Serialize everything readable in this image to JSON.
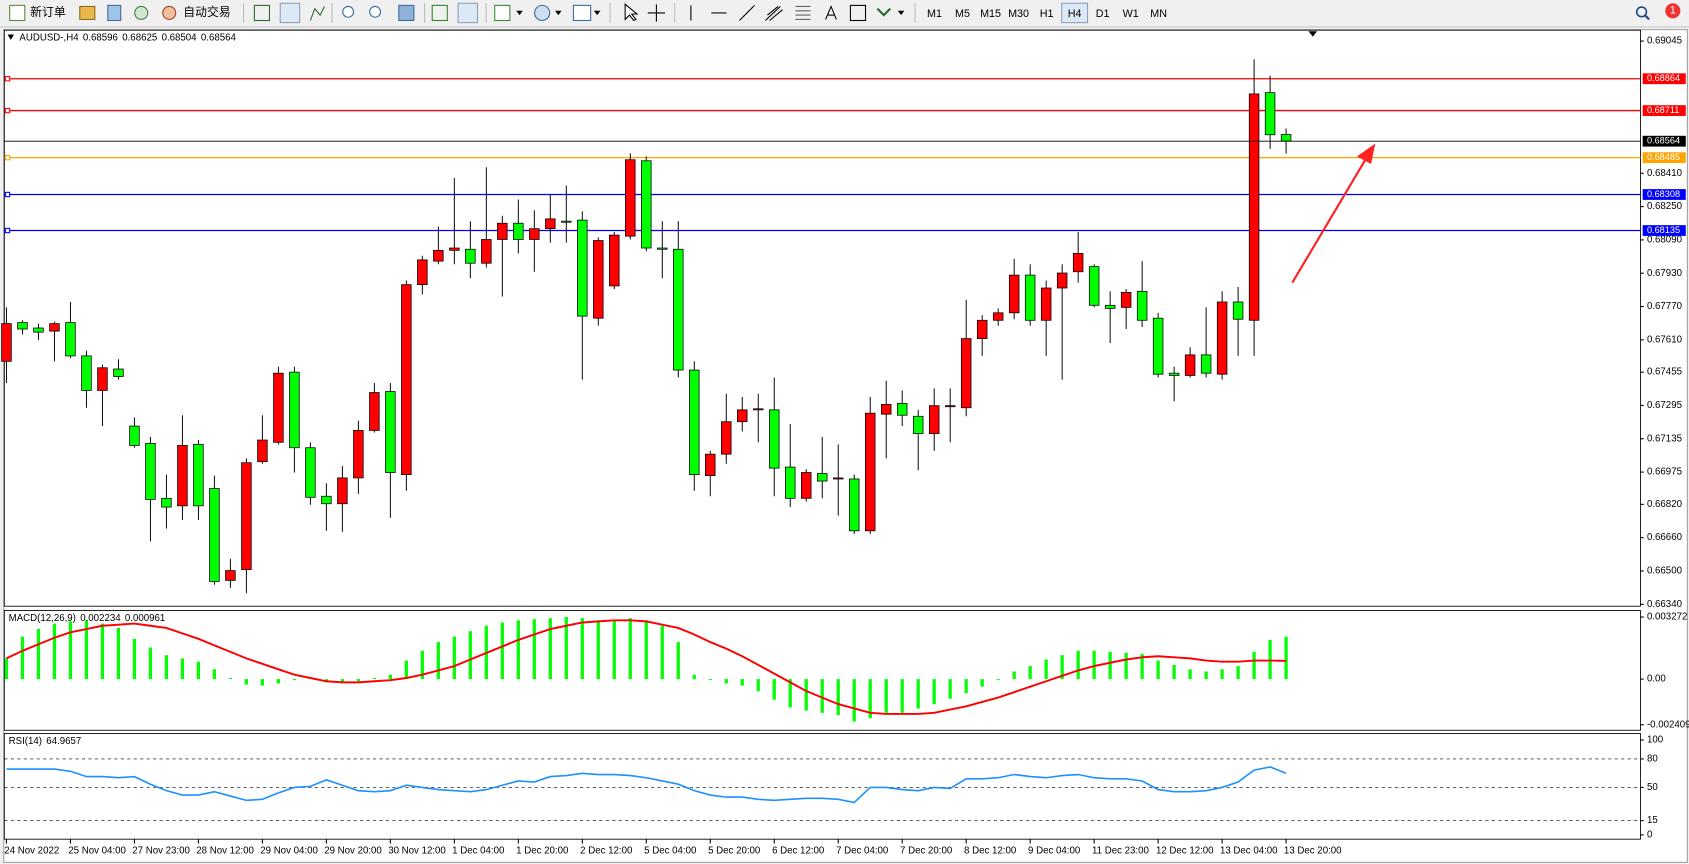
{
  "toolbar": {
    "new_order": "新订单",
    "auto_trading": "自动交易",
    "timeframes": [
      "M1",
      "M5",
      "M15",
      "M30",
      "H1",
      "H4",
      "D1",
      "W1",
      "MN"
    ],
    "active_timeframe": "H4",
    "notifications": "1"
  },
  "chart_data": [
    {
      "type": "candlestick",
      "title": "AUDUSD-,H4",
      "up_color": "#ff0000",
      "down_color": "#00ff00",
      "categories": [
        "24 Nov 2022",
        null,
        null,
        null,
        "25 Nov 04:00",
        null,
        null,
        null,
        "27 Nov 23:00",
        null,
        null,
        null,
        "28 Nov 12:00",
        null,
        null,
        null,
        "29 Nov 04:00",
        null,
        null,
        null,
        "29 Nov 20:00",
        null,
        null,
        null,
        "30 Nov 12:00",
        null,
        null,
        null,
        "1 Dec 04:00",
        null,
        null,
        null,
        "1 Dec 20:00",
        null,
        null,
        null,
        "2 Dec 12:00",
        null,
        null,
        null,
        "5 Dec 04:00",
        null,
        null,
        null,
        "5 Dec 20:00",
        null,
        null,
        null,
        "6 Dec 12:00",
        null,
        null,
        null,
        "7 Dec 04:00",
        null,
        null,
        null,
        "7 Dec 20:00",
        null,
        null,
        null,
        "8 Dec 12:00",
        null,
        null,
        null,
        "9 Dec 04:00",
        null,
        null,
        null,
        "11 Dec 23:00",
        null,
        null,
        null,
        "12 Dec 12:00",
        null,
        null,
        null,
        "13 Dec 04:00",
        null,
        null,
        null,
        "13 Dec 20:00"
      ],
      "open": [
        0.67507,
        0.67693,
        0.67667,
        0.67652,
        0.67693,
        0.67533,
        0.67367,
        0.6747,
        0.67196,
        0.67113,
        0.66849,
        0.66813,
        0.67108,
        0.66896,
        0.66455,
        0.66507,
        0.67025,
        0.67118,
        0.67455,
        0.67092,
        0.66859,
        0.66823,
        0.66947,
        0.67175,
        0.67362,
        0.66963,
        0.67875,
        0.67988,
        0.6804,
        0.68045,
        0.67978,
        0.68092,
        0.6817,
        0.68092,
        0.68144,
        0.6818,
        0.68185,
        0.67714,
        0.67869,
        0.68108,
        0.6847,
        0.68051,
        0.68045,
        0.67465,
        0.66958,
        0.67061,
        0.67217,
        0.67274,
        0.67274,
        0.66999,
        0.66849,
        0.66968,
        0.66942,
        0.66942,
        0.66693,
        0.67253,
        0.67305,
        0.67243,
        0.6716,
        0.67289,
        0.67284,
        0.67616,
        0.67704,
        0.6774,
        0.67921,
        0.67704,
        0.67859,
        0.67937,
        0.67962,
        0.67776,
        0.67766,
        0.67843,
        0.67714,
        0.6745,
        0.67439,
        0.67538,
        0.67445,
        0.67792,
        0.67704,
        0.68797,
        0.68596
      ],
      "high": [
        0.67766,
        0.67704,
        0.67688,
        0.67698,
        0.67792,
        0.67558,
        0.67491,
        0.67517,
        0.67237,
        0.67144,
        0.66963,
        0.67248,
        0.67129,
        0.66958,
        0.66559,
        0.67041,
        0.67248,
        0.67481,
        0.67481,
        0.67118,
        0.66921,
        0.67004,
        0.67222,
        0.67403,
        0.67403,
        0.67895,
        0.68014,
        0.68154,
        0.68387,
        0.6818,
        0.68439,
        0.68206,
        0.68284,
        0.68232,
        0.6831,
        0.68351,
        0.68227,
        0.68102,
        0.68128,
        0.68506,
        0.68491,
        0.6818,
        0.6818,
        0.67507,
        0.67077,
        0.67351,
        0.67336,
        0.67351,
        0.67429,
        0.67206,
        0.66989,
        0.67144,
        0.67108,
        0.66963,
        0.67336,
        0.67414,
        0.67367,
        0.67274,
        0.67377,
        0.67377,
        0.67802,
        0.67729,
        0.67761,
        0.67999,
        0.67973,
        0.67895,
        0.67973,
        0.68128,
        0.67973,
        0.67843,
        0.67854,
        0.67988,
        0.6774,
        0.67481,
        0.67574,
        0.67766,
        0.67843,
        0.67864,
        0.68957,
        0.68879,
        0.68625
      ],
      "low": [
        0.67403,
        0.67636,
        0.6761,
        0.67507,
        0.67522,
        0.67284,
        0.67196,
        0.67419,
        0.67092,
        0.66642,
        0.66704,
        0.66745,
        0.66745,
        0.66434,
        0.66419,
        0.66393,
        0.67015,
        0.67108,
        0.66973,
        0.66818,
        0.66693,
        0.66688,
        0.6687,
        0.67165,
        0.66756,
        0.66885,
        0.67828,
        0.67973,
        0.67973,
        0.67906,
        0.67957,
        0.67818,
        0.68025,
        0.67937,
        0.68077,
        0.68077,
        0.67419,
        0.67678,
        0.67854,
        0.68092,
        0.68035,
        0.67906,
        0.67429,
        0.66885,
        0.66859,
        0.67015,
        0.6717,
        0.67118,
        0.66859,
        0.66807,
        0.66833,
        0.66849,
        0.66766,
        0.66678,
        0.66678,
        0.67041,
        0.67196,
        0.66984,
        0.67077,
        0.67118,
        0.67243,
        0.67533,
        0.67678,
        0.67709,
        0.67678,
        0.67533,
        0.67419,
        0.67885,
        0.67766,
        0.67595,
        0.67662,
        0.67672,
        0.67429,
        0.67315,
        0.67429,
        0.67429,
        0.67419,
        0.67533,
        0.67533,
        0.68527,
        0.68504
      ],
      "close": [
        0.67688,
        0.67662,
        0.67647,
        0.67688,
        0.67533,
        0.67367,
        0.67476,
        0.67434,
        0.67103,
        0.66844,
        0.66807,
        0.67103,
        0.66813,
        0.6645,
        0.66502,
        0.6702,
        0.67129,
        0.6745,
        0.67092,
        0.66854,
        0.66823,
        0.66947,
        0.67175,
        0.67357,
        0.66973,
        0.67875,
        0.67994,
        0.6804,
        0.68051,
        0.67978,
        0.68092,
        0.6817,
        0.68092,
        0.68144,
        0.68191,
        0.68175,
        0.67724,
        0.68087,
        0.68113,
        0.68475,
        0.68051,
        0.68045,
        0.67465,
        0.66963,
        0.67061,
        0.67217,
        0.67274,
        0.67279,
        0.66994,
        0.66849,
        0.66973,
        0.66932,
        0.66947,
        0.66693,
        0.67258,
        0.673,
        0.67248,
        0.6716,
        0.67294,
        0.67294,
        0.67616,
        0.67704,
        0.6774,
        0.67921,
        0.67704,
        0.67859,
        0.67931,
        0.68025,
        0.67776,
        0.67761,
        0.67838,
        0.67704,
        0.67445,
        0.67439,
        0.67538,
        0.6745,
        0.67792,
        0.67709,
        0.68791,
        0.68595,
        0.68564
      ],
      "hlines": [
        {
          "value": 0.68864,
          "color": "#ff0000"
        },
        {
          "value": 0.68711,
          "color": "#ff0000"
        },
        {
          "value": 0.68485,
          "color": "#ffa500"
        },
        {
          "value": 0.68308,
          "color": "#0000ff"
        },
        {
          "value": 0.68135,
          "color": "#0000ff"
        }
      ],
      "ylim": [
        0.66331,
        0.69097
      ],
      "yticks": [
        0.69045,
        {
          "value": 0.6841,
          "label": "0.68410"
        },
        {
          "value": 0.6825,
          "label": "0.68250"
        },
        {
          "value": 0.6809,
          "label": "0.68090"
        },
        {
          "value": 0.6793,
          "label": "0.67930"
        },
        {
          "value": 0.6777,
          "label": "0.67770"
        },
        {
          "value": 0.6761,
          "label": "0.67610"
        },
        0.67455,
        0.67295,
        0.67135,
        0.66975,
        {
          "value": 0.6682,
          "label": "0.66820"
        },
        {
          "value": 0.6666,
          "label": "0.66660"
        },
        {
          "value": 0.665,
          "label": "0.66500"
        },
        {
          "value": 0.6634,
          "label": "0.66340"
        }
      ]
    },
    {
      "type": "macd",
      "title": "MACD(12,26,9)",
      "color": "#00ff00",
      "signal_color": "#ff0000",
      "values": [
        0.001091,
        0.002239,
        0.00264,
        0.002927,
        0.003042,
        0.0031,
        0.002927,
        0.002698,
        0.002124,
        0.001665,
        0.001263,
        0.001091,
        0.000918,
        0.000517,
        5.7e-05,
        -0.000287,
        -0.000344,
        -0.00023,
        -5.7e-05,
        5.7e-05,
        -0.000172,
        -0.000172,
        -0.000115,
        5.7e-05,
        0.00023,
        0.000976,
        0.001492,
        0.001952,
        0.002239,
        0.002526,
        0.002813,
        0.002985,
        0.0031,
        0.003157,
        0.003214,
        0.003272,
        0.003214,
        0.0031,
        0.0031,
        0.003214,
        0.0031,
        0.002813,
        0.001952,
        0.00023,
        -5.7e-05,
        -0.00023,
        -0.000344,
        -0.000631,
        -0.001091,
        -0.001492,
        -0.001665,
        -0.001779,
        -0.001894,
        -0.002239,
        -0.002066,
        -0.001779,
        -0.001779,
        -0.00155,
        -0.00132,
        -0.001033,
        -0.000746,
        -0.000402,
        -5.7e-05,
        0.000402,
        0.000689,
        0.001033,
        0.001263,
        0.001492,
        0.001492,
        0.001435,
        0.001378,
        0.00132,
        0.000976,
        0.000746,
        0.000517,
        0.000402,
        0.000517,
        0.000689,
        0.001435,
        0.002066,
        0.002234
      ],
      "signal": [
        0.001091,
        0.001492,
        0.001837,
        0.002181,
        0.002468,
        0.00264,
        0.002813,
        0.00287,
        0.002927,
        0.002813,
        0.002698,
        0.002411,
        0.002124,
        0.001779,
        0.001435,
        0.001091,
        0.000804,
        0.000517,
        0.00023,
        5.7e-05,
        -0.000115,
        -0.000172,
        -0.000172,
        -0.000115,
        -5.7e-05,
        5.7e-05,
        0.00023,
        0.000459,
        0.000689,
        0.001033,
        0.001378,
        0.001722,
        0.002066,
        0.002353,
        0.00264,
        0.002813,
        0.002985,
        0.003042,
        0.0031,
        0.0031,
        0.003042,
        0.00287,
        0.002698,
        0.002353,
        0.001952,
        0.001607,
        0.001205,
        0.000746,
        0.000287,
        -0.000172,
        -0.000631,
        -0.000976,
        -0.00132,
        -0.00155,
        -0.001779,
        -0.001837,
        -0.001837,
        -0.001837,
        -0.001779,
        -0.001607,
        -0.001435,
        -0.001205,
        -0.000976,
        -0.000689,
        -0.000402,
        -0.000115,
        0.000172,
        0.000459,
        0.000689,
        0.000861,
        0.001033,
        0.001148,
        0.001205,
        0.001148,
        0.001091,
        0.000976,
        0.000918,
        0.000918,
        0.000976,
        0.000976,
        0.000961
      ],
      "ylim": [
        -0.002698,
        0.003616
      ],
      "yticks": [
        0.003272,
        {
          "value": 0,
          "label": "0.00"
        },
        -0.002409
      ]
    },
    {
      "type": "line",
      "title": "RSI(14)",
      "color": "#1e90ff",
      "values": [
        69.3,
        69.3,
        69.3,
        69.3,
        67.0,
        61.4,
        61.4,
        60.2,
        61.4,
        53.4,
        46.6,
        42.0,
        42.0,
        45.5,
        40.9,
        36.4,
        37.5,
        44.3,
        50.0,
        51.1,
        58.0,
        52.3,
        46.6,
        45.5,
        46.6,
        52.3,
        50.0,
        47.7,
        46.6,
        45.5,
        47.7,
        52.3,
        56.8,
        55.7,
        61.4,
        62.5,
        64.8,
        63.6,
        63.6,
        62.5,
        60.2,
        56.8,
        53.4,
        46.6,
        42.0,
        39.8,
        39.8,
        37.5,
        36.4,
        37.5,
        38.6,
        38.6,
        37.5,
        34.1,
        50.0,
        50.0,
        47.7,
        46.6,
        50.0,
        48.9,
        59.1,
        59.1,
        60.2,
        63.6,
        61.4,
        60.2,
        62.5,
        63.6,
        60.2,
        59.1,
        59.1,
        56.8,
        47.7,
        45.5,
        45.5,
        46.6,
        50.0,
        55.7,
        68.2,
        71.6,
        64.9657
      ],
      "levels": [
        80,
        50,
        15
      ],
      "ylim": [
        -4.5,
        106.8
      ],
      "yticks": [
        100,
        80,
        50,
        15,
        0
      ]
    }
  ]
}
